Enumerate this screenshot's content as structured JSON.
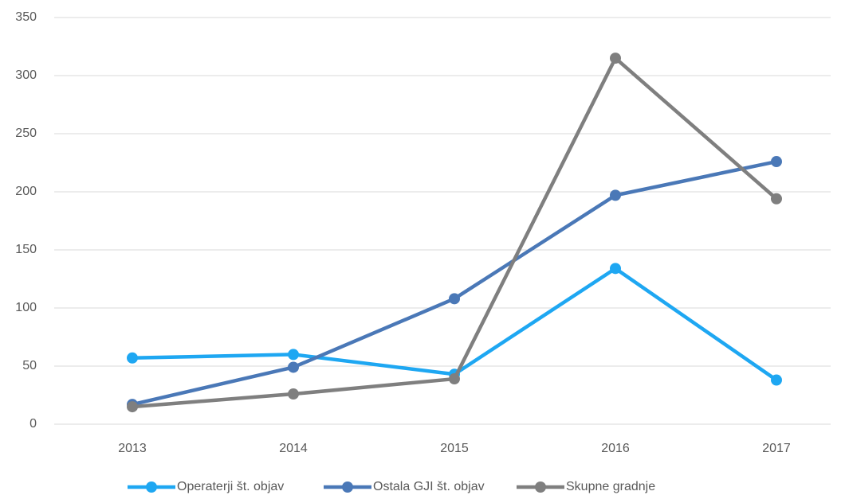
{
  "chart_data": {
    "type": "line",
    "categories": [
      "2013",
      "2014",
      "2015",
      "2016",
      "2017"
    ],
    "series": [
      {
        "name": "Operaterji št. objav",
        "color": "#1ea7f2",
        "values": [
          57,
          60,
          43,
          134,
          38
        ]
      },
      {
        "name": "Ostala GJI št. objav",
        "color": "#4a78b7",
        "values": [
          17,
          49,
          108,
          197,
          226
        ]
      },
      {
        "name": "Skupne gradnje",
        "color": "#7f7f7f",
        "values": [
          15,
          26,
          39,
          315,
          194
        ]
      }
    ],
    "ylim": [
      0,
      350
    ],
    "yticks": [
      0,
      50,
      100,
      150,
      200,
      250,
      300,
      350
    ],
    "grid": true,
    "legend": "bottom"
  }
}
